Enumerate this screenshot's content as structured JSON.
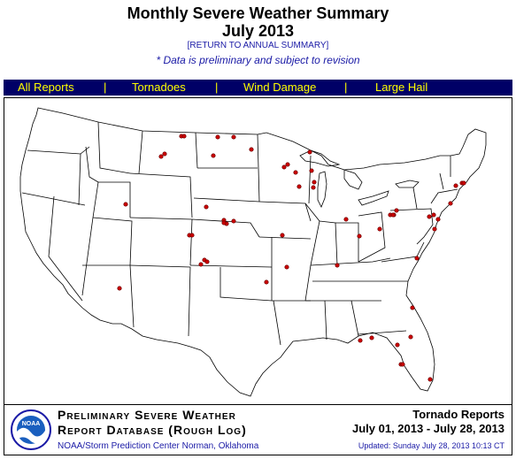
{
  "header": {
    "title_line1": "Monthly Severe Weather Summary",
    "title_line2": "July 2013",
    "return_link": "[RETURN TO ANNUAL SUMMARY]",
    "disclaimer": "* Data is preliminary and subject to revision"
  },
  "nav": {
    "items": [
      {
        "label": "All Reports"
      },
      {
        "label": "Tornadoes"
      },
      {
        "label": "Wind Damage"
      },
      {
        "label": "Large Hail"
      }
    ],
    "separator": "|"
  },
  "map": {
    "report_color": "#cc0000",
    "background": "#ffffff",
    "border_color": "#000000",
    "reports_shown": 56
  },
  "footer": {
    "logo_text": "NOAA",
    "db_line1": "Preliminary Severe Weather",
    "db_line2": "Report Database (Rough Log)",
    "org": "NOAA/Storm Prediction Center   Norman, Oklahoma",
    "report_type": "Tornado Reports",
    "date_range": "July 01, 2013 - July 28, 2013",
    "updated": "Updated:  Sunday July 28, 2013 10:13 CT"
  },
  "colors": {
    "navbar_bg": "#000066",
    "navbar_text": "#ffff00",
    "link_blue": "#1a1aa6"
  }
}
